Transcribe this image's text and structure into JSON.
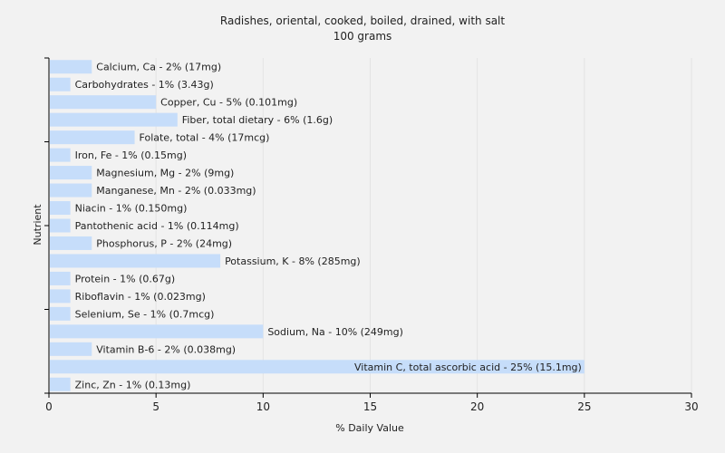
{
  "chart_data": {
    "type": "bar",
    "orientation": "horizontal",
    "title": "Radishes, oriental, cooked, boiled, drained, with salt",
    "subtitle": "100 grams",
    "xlabel": "% Daily Value",
    "ylabel": "Nutrient",
    "xlim": [
      0,
      30
    ],
    "xticks": [
      0,
      5,
      10,
      15,
      20,
      25,
      30
    ],
    "grid": true,
    "bar_color": "#c6ddfa",
    "categories": [
      "Calcium, Ca",
      "Carbohydrates",
      "Copper, Cu",
      "Fiber, total dietary",
      "Folate, total",
      "Iron, Fe",
      "Magnesium, Mg",
      "Manganese, Mn",
      "Niacin",
      "Pantothenic acid",
      "Phosphorus, P",
      "Potassium, K",
      "Protein",
      "Riboflavin",
      "Selenium, Se",
      "Sodium, Na",
      "Vitamin B-6",
      "Vitamin C, total ascorbic acid",
      "Zinc, Zn"
    ],
    "values": [
      2,
      1,
      5,
      6,
      4,
      1,
      2,
      2,
      1,
      1,
      2,
      8,
      1,
      1,
      1,
      10,
      2,
      25,
      1
    ],
    "labels": [
      "Calcium, Ca - 2% (17mg)",
      "Carbohydrates - 1% (3.43g)",
      "Copper, Cu - 5% (0.101mg)",
      "Fiber, total dietary - 6% (1.6g)",
      "Folate, total - 4% (17mcg)",
      "Iron, Fe - 1% (0.15mg)",
      "Magnesium, Mg - 2% (9mg)",
      "Manganese, Mn - 2% (0.033mg)",
      "Niacin - 1% (0.150mg)",
      "Pantothenic acid - 1% (0.114mg)",
      "Phosphorus, P - 2% (24mg)",
      "Potassium, K - 8% (285mg)",
      "Protein - 1% (0.67g)",
      "Riboflavin - 1% (0.023mg)",
      "Selenium, Se - 1% (0.7mcg)",
      "Sodium, Na - 10% (249mg)",
      "Vitamin B-6 - 2% (0.038mg)",
      "Vitamin C, total ascorbic acid - 25% (15.1mg)",
      "Zinc, Zn - 1% (0.13mg)"
    ]
  }
}
